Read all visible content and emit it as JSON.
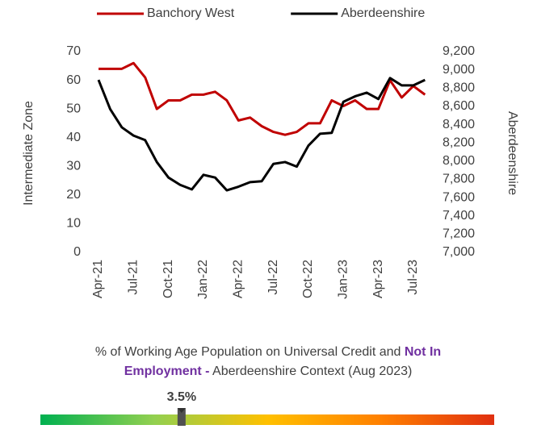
{
  "chart_data": [
    {
      "type": "line",
      "y_label": "Intermediate Zone",
      "y2_label": "Aberdeenshire",
      "categories": [
        "Apr-21",
        null,
        null,
        "Jul-21",
        null,
        null,
        "Oct-21",
        null,
        null,
        "Jan-22",
        null,
        null,
        "Apr-22",
        null,
        null,
        "Jul-22",
        null,
        null,
        "Oct-22",
        null,
        null,
        "Jan-23",
        null,
        null,
        "Apr-23",
        null,
        null,
        "Jul-23",
        null
      ],
      "series": [
        {
          "name": "Banchory West",
          "color": "#c00000",
          "values": [
            64,
            64,
            64,
            66,
            61,
            50,
            53,
            53,
            55,
            55,
            56,
            53,
            46,
            47,
            44,
            42,
            41,
            42,
            45,
            45,
            53,
            51,
            53,
            50,
            50,
            60,
            54,
            58,
            55
          ]
        },
        {
          "name": "Aberdeenshire",
          "color": "#000000",
          "axis": "y2",
          "values": [
            8890,
            8570,
            8370,
            8280,
            8230,
            7990,
            7820,
            7740,
            7690,
            7850,
            7820,
            7680,
            7720,
            7770,
            7780,
            7970,
            7990,
            7940,
            8170,
            8300,
            8310,
            8650,
            8710,
            8750,
            8680,
            8910,
            8830,
            8830,
            8890
          ]
        }
      ],
      "ylim": [
        0,
        70
      ],
      "yticks": [
        0,
        10,
        20,
        30,
        40,
        50,
        60,
        70
      ],
      "y2lim": [
        7000,
        9200
      ],
      "y2ticks": [
        {
          "value": 7000,
          "label": "7,000"
        },
        {
          "value": 7200,
          "label": "7,200"
        },
        {
          "value": 7400,
          "label": "7,400"
        },
        {
          "value": 7600,
          "label": "7,600"
        },
        {
          "value": 7800,
          "label": "7,800"
        },
        {
          "value": 8000,
          "label": "8,000"
        },
        {
          "value": 8200,
          "label": "8,200"
        },
        {
          "value": 8400,
          "label": "8,400"
        },
        {
          "value": 8600,
          "label": "8,600"
        },
        {
          "value": 8800,
          "label": "8,800"
        },
        {
          "value": 9000,
          "label": "9,000"
        },
        {
          "value": 9200,
          "label": "9,200"
        }
      ],
      "legend": "top"
    },
    {
      "type": "gauge",
      "title": [
        "% of Working Age Population on Universal Credit and ",
        "Not In",
        "Employment -",
        " Aberdeenshire Context (Aug 2023)"
      ],
      "value": 3.5,
      "value_label": "3.5%",
      "xlim": [
        0,
        11.25
      ],
      "colors": [
        "#00b050",
        "#92d050",
        "#ffc000",
        "#ff8000",
        "#e03010"
      ]
    }
  ]
}
